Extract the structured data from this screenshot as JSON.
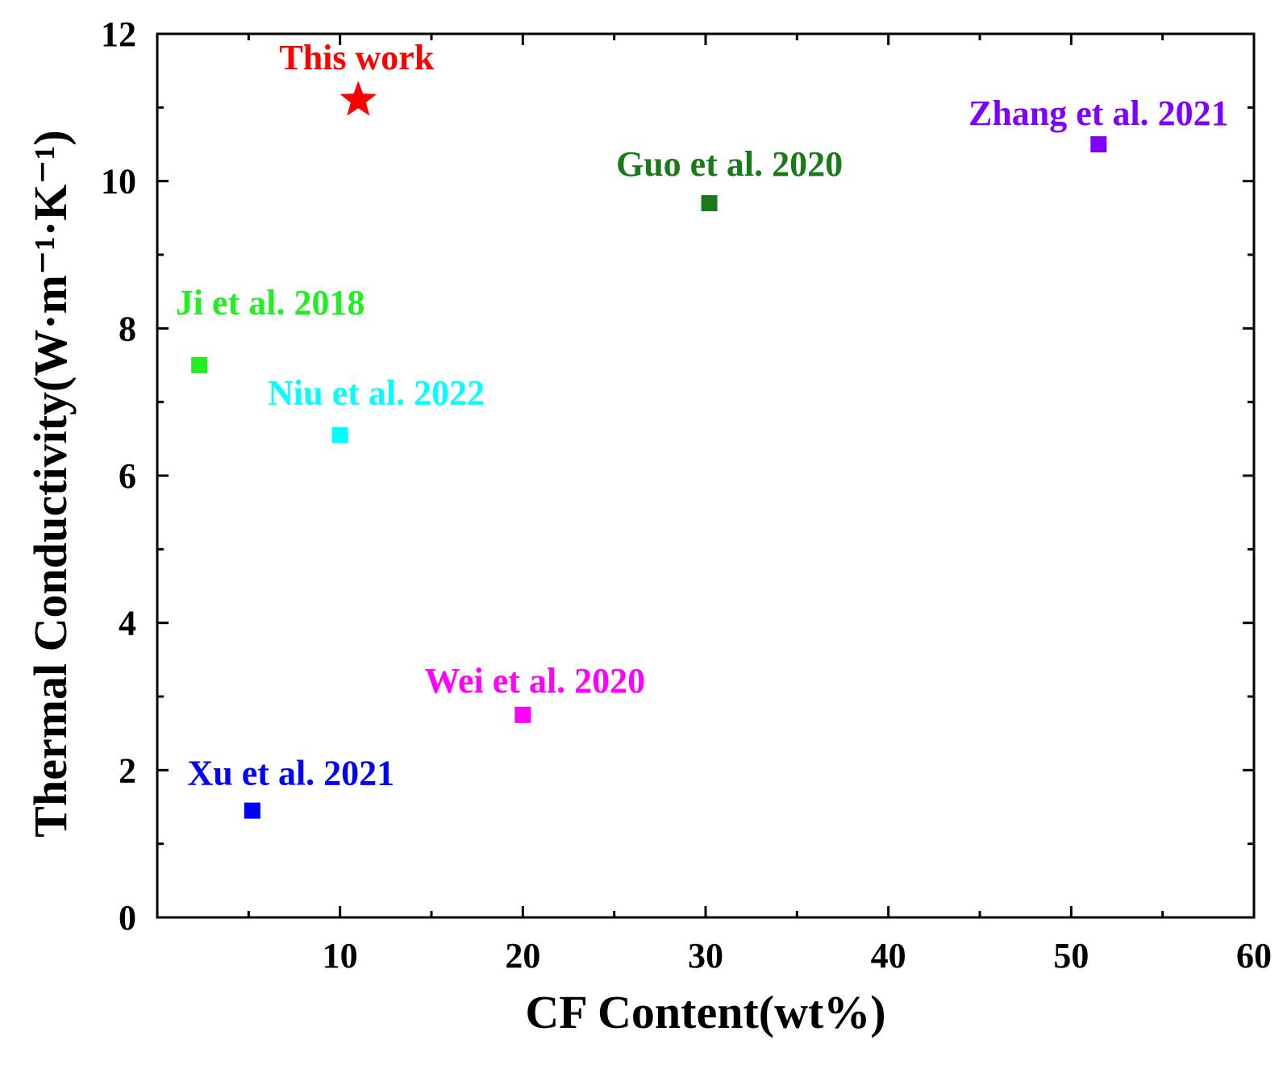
{
  "chart_data": {
    "type": "scatter",
    "xlabel": "CF Content(wt%)",
    "ylabel": "Thermal Conductivity(W·m⁻¹·K⁻¹)",
    "xlim": [
      0,
      60
    ],
    "ylim": [
      0,
      12
    ],
    "x_ticks": [
      10,
      20,
      30,
      40,
      50,
      60
    ],
    "y_ticks": [
      0,
      2,
      4,
      6,
      8,
      10,
      12
    ],
    "x_minor_step": 5,
    "y_minor_step": 1,
    "grid": false,
    "points": [
      {
        "label": "This work",
        "x": 11,
        "y": 11.1,
        "marker": "star",
        "color": "#ff0000"
      },
      {
        "label": "Zhang et al. 2021",
        "x": 51.5,
        "y": 10.5,
        "marker": "square",
        "color": "#8000ff"
      },
      {
        "label": "Guo et al. 2020",
        "x": 30.2,
        "y": 9.7,
        "marker": "square",
        "color": "#1a7a1a"
      },
      {
        "label": "Ji et al. 2018",
        "x": 2.3,
        "y": 7.5,
        "marker": "square",
        "color": "#22ee22"
      },
      {
        "label": "Niu et al. 2022",
        "x": 10,
        "y": 6.55,
        "marker": "square",
        "color": "#00ffff"
      },
      {
        "label": "Wei et al. 2020",
        "x": 20,
        "y": 2.75,
        "marker": "square",
        "color": "#ff00ff"
      },
      {
        "label": "Xu et al. 2021",
        "x": 5.2,
        "y": 1.45,
        "marker": "square",
        "color": "#0000ff"
      }
    ]
  }
}
